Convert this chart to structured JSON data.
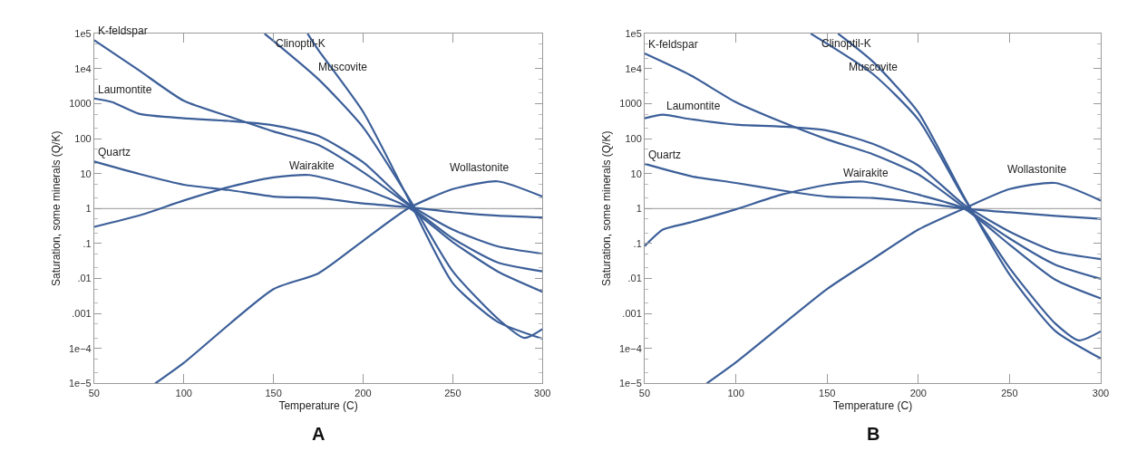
{
  "chart_data": [
    {
      "type": "line",
      "xlabel": "Temperature (C)",
      "ylabel": "Saturation, some minerals (Q/K)",
      "log": "y",
      "xlim": [
        50,
        300
      ],
      "xticks": [
        50,
        100,
        150,
        200,
        250,
        300
      ],
      "ylim": [
        1e-05,
        100000.0
      ],
      "yticks": [
        {
          "value": 100000.0,
          "label": "1e5"
        },
        {
          "value": 10000.0,
          "label": "1e4"
        },
        1000,
        100,
        10,
        1,
        {
          "value": 0.1,
          "label": ".1"
        },
        {
          "value": 0.01,
          "label": ".01"
        },
        {
          "value": 0.001,
          "label": ".001"
        },
        {
          "value": 0.0001,
          "label": "1e−4"
        },
        {
          "value": 1e-05,
          "label": "1e−5"
        }
      ],
      "ref_lines": [
        {
          "axis": "y",
          "value": 1,
          "color": "#aaaaaa"
        }
      ],
      "series": [
        {
          "name": "K-feldspar",
          "color": "#3c5f99",
          "x": [
            50,
            75,
            100,
            125,
            150,
            175,
            200,
            225,
            250,
            275,
            300
          ],
          "values": [
            65000,
            8900,
            1200,
            430,
            160,
            66,
            11,
            1.3,
            0.14,
            0.029,
            0.016
          ]
        },
        {
          "name": "Laumontite",
          "color": "#3c5f99",
          "x": [
            50,
            60,
            75,
            100,
            125,
            150,
            175,
            200,
            225,
            250,
            275,
            300
          ],
          "values": [
            1400,
            1100,
            510,
            380,
            320,
            240,
            120,
            21,
            1.4,
            0.25,
            0.083,
            0.051
          ]
        },
        {
          "name": "Quartz",
          "color": "#3c5f99",
          "x": [
            50,
            75,
            100,
            125,
            150,
            175,
            200,
            225,
            250,
            275,
            300
          ],
          "values": [
            22,
            9.8,
            4.8,
            3.4,
            2.2,
            2.0,
            1.4,
            1.1,
            0.79,
            0.63,
            0.56
          ]
        },
        {
          "name": "Wairakite",
          "color": "#3c5f99",
          "x": [
            50,
            75,
            100,
            125,
            150,
            170,
            200,
            225,
            250,
            275,
            300
          ],
          "values": [
            0.3,
            0.63,
            1.7,
            4.1,
            7.8,
            9.1,
            3.6,
            1.1,
            0.11,
            0.016,
            0.0042
          ]
        },
        {
          "name": "Clinoptil-K",
          "color": "#3c5f99",
          "x": [
            145,
            175,
            200,
            225,
            250,
            275,
            290,
            300
          ],
          "values": [
            100000,
            5000,
            210,
            2.2,
            0.016,
            0.00072,
            0.0002,
            0.00036
          ]
        },
        {
          "name": "Muscovite",
          "color": "#3c5f99",
          "x": [
            169,
            175,
            200,
            225,
            250,
            275,
            300
          ],
          "values": [
            100000,
            34000,
            580,
            2.0,
            0.0074,
            0.00058,
            0.00019
          ]
        },
        {
          "name": "Wollastonite",
          "color": "#3c5f99",
          "x": [
            84,
            100,
            150,
            175,
            200,
            225,
            250,
            275,
            300
          ],
          "values": [
            1e-05,
            3.9e-05,
            0.005,
            0.014,
            0.12,
            1,
            3.6,
            6.0,
            2.2
          ]
        }
      ],
      "annotations": [
        "A"
      ]
    },
    {
      "type": "line",
      "xlabel": "Temperature (C)",
      "ylabel": "Saturation, some minerals (Q/K)",
      "log": "y",
      "xlim": [
        50,
        300
      ],
      "xticks": [
        50,
        100,
        150,
        200,
        250,
        300
      ],
      "ylim": [
        1e-05,
        100000.0
      ],
      "yticks": [
        {
          "value": 100000.0,
          "label": "1e5"
        },
        {
          "value": 10000.0,
          "label": "1e4"
        },
        1000,
        100,
        10,
        1,
        {
          "value": 0.1,
          "label": ".1"
        },
        {
          "value": 0.01,
          "label": ".01"
        },
        {
          "value": 0.001,
          "label": ".001"
        },
        {
          "value": 0.0001,
          "label": "1e−4"
        },
        {
          "value": 1e-05,
          "label": "1e−5"
        }
      ],
      "ref_lines": [
        {
          "axis": "y",
          "value": 1,
          "color": "#aaaaaa"
        }
      ],
      "series": [
        {
          "name": "K-feldspar",
          "color": "#3c5f99",
          "x": [
            50,
            75,
            100,
            125,
            150,
            175,
            200,
            225,
            250,
            275,
            300
          ],
          "values": [
            27000,
            6500,
            1100,
            300,
            95,
            36,
            9.5,
            1.1,
            0.14,
            0.025,
            0.0098
          ]
        },
        {
          "name": "Laumontite",
          "color": "#3c5f99",
          "x": [
            50,
            60,
            75,
            100,
            125,
            150,
            175,
            200,
            225,
            250,
            275,
            300
          ],
          "values": [
            380,
            480,
            360,
            250,
            220,
            170,
            71,
            17,
            1.3,
            0.22,
            0.059,
            0.036
          ]
        },
        {
          "name": "Quartz",
          "color": "#3c5f99",
          "x": [
            50,
            75,
            100,
            125,
            150,
            175,
            200,
            225,
            250,
            275,
            300
          ],
          "values": [
            19,
            8.5,
            5.4,
            3.3,
            2.2,
            2.0,
            1.5,
            1.0,
            0.78,
            0.62,
            0.51
          ]
        },
        {
          "name": "Wairakite",
          "color": "#3c5f99",
          "x": [
            50,
            60,
            75,
            100,
            125,
            150,
            170,
            200,
            225,
            250,
            275,
            300
          ],
          "values": [
            0.085,
            0.25,
            0.4,
            0.95,
            2.5,
            4.8,
            5.9,
            2.5,
            1.0,
            0.093,
            0.0093,
            0.0027
          ]
        },
        {
          "name": "Clinoptil-K",
          "color": "#3c5f99",
          "x": [
            141,
            175,
            200,
            225,
            250,
            275,
            288,
            300
          ],
          "values": [
            100000,
            7100,
            350,
            2.0,
            0.02,
            0.00052,
            0.00017,
            0.00031
          ]
        },
        {
          "name": "Muscovite",
          "color": "#3c5f99",
          "x": [
            156,
            175,
            200,
            225,
            250,
            275,
            300
          ],
          "values": [
            100000,
            16000,
            560,
            2.2,
            0.013,
            0.00032,
            5.2e-05
          ]
        },
        {
          "name": "Wollastonite",
          "color": "#3c5f99",
          "x": [
            84,
            100,
            150,
            175,
            200,
            225,
            250,
            275,
            300
          ],
          "values": [
            1e-05,
            4e-05,
            0.005,
            0.036,
            0.25,
            1,
            3.6,
            5.4,
            1.7
          ]
        }
      ],
      "annotations": [
        "B"
      ]
    }
  ]
}
